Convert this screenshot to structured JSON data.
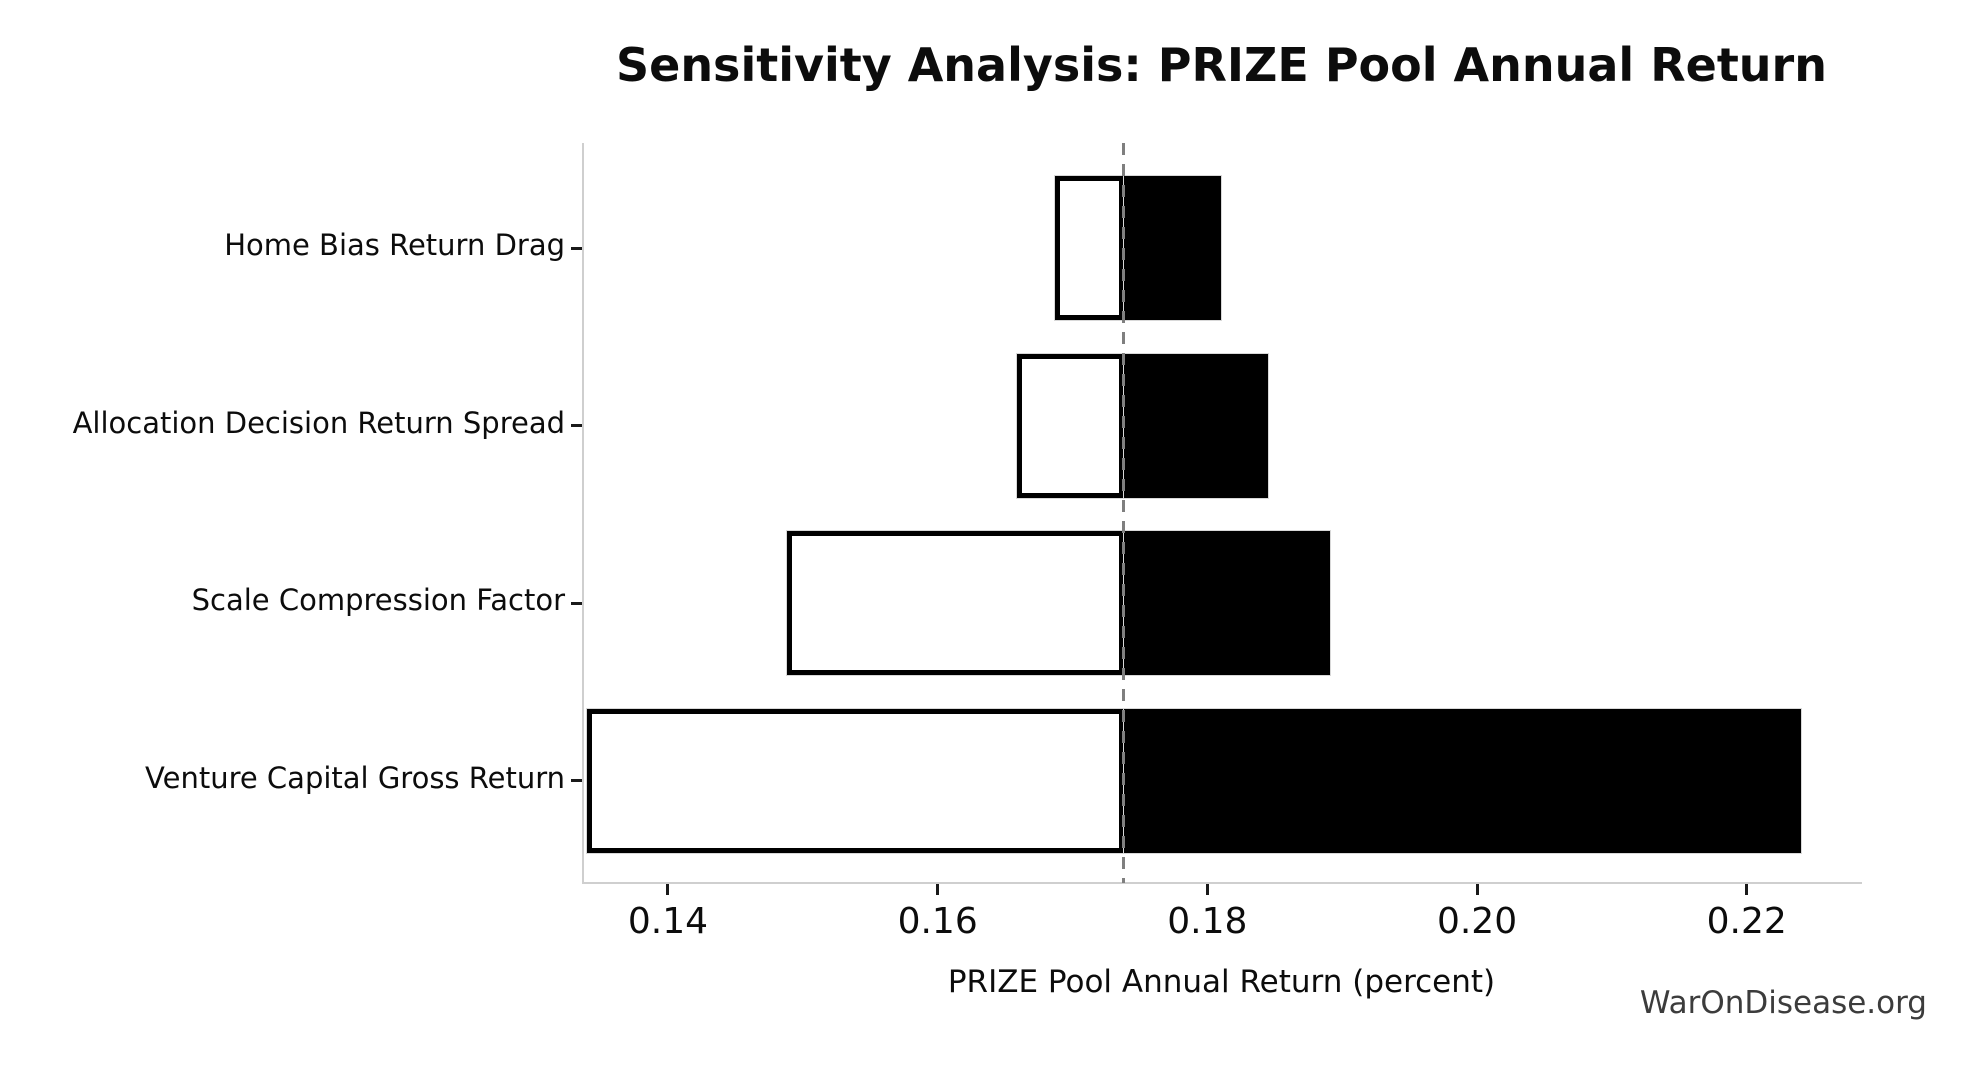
{
  "chart_data": {
    "type": "bar",
    "variant": "tornado-sensitivity",
    "title": "Sensitivity Analysis: PRIZE Pool Annual Return",
    "xlabel": "PRIZE Pool Annual Return (percent)",
    "ylabel": "",
    "watermark": "WarOnDisease.org",
    "baseline": 0.1738,
    "xlim": [
      0.1337,
      0.2284
    ],
    "x_ticks": [
      0.14,
      0.16,
      0.18,
      0.2,
      0.22
    ],
    "x_tick_labels": [
      "0.14",
      "0.16",
      "0.18",
      "0.20",
      "0.22"
    ],
    "categories": [
      "Home Bias Return Drag",
      "Allocation Decision Return Spread",
      "Scale Compression Factor",
      "Venture Capital Gross Return"
    ],
    "series": [
      {
        "name": "downside",
        "values": [
          0.1687,
          0.1659,
          0.1488,
          0.134
        ]
      },
      {
        "name": "upside",
        "values": [
          0.181,
          0.1845,
          0.1891,
          0.224
        ]
      }
    ],
    "legend": false,
    "grid": false,
    "colors": {
      "upside_fill": "#000000",
      "downside_fill": "#ffffff",
      "bar_edge": "#000000",
      "baseline_line": "#7f7f7f",
      "spine": "#cfcfcf",
      "text": "#0c0c0c",
      "watermark_text": "#3c3c3c"
    }
  }
}
